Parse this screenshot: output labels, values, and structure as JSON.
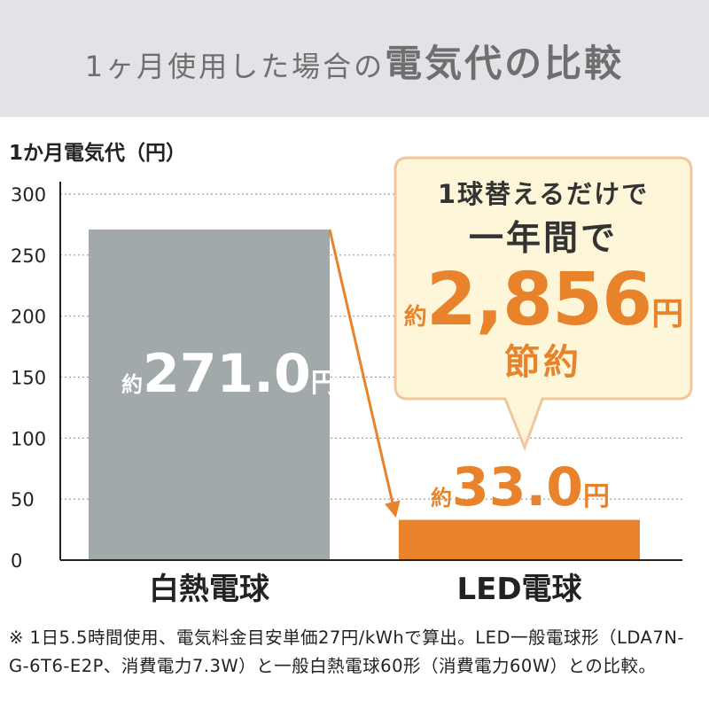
{
  "header": {
    "title_prefix": "1ヶ月使用した場合の",
    "title_main": "電気代の比較"
  },
  "colors": {
    "incandescent": "#a2a9aa",
    "led": "#e8832c",
    "bubble_fill": "#fdf6d9",
    "bubble_border": "#f0c79b"
  },
  "callout": {
    "line1": "1球替えるだけで",
    "line2": "一年間で",
    "prefix": "約",
    "amount": "2,856",
    "unit": "円",
    "line4": "節約"
  },
  "value_labels": [
    {
      "prefix": "約",
      "number": "271.0",
      "unit": "円"
    },
    {
      "prefix": "約",
      "number": "33.0",
      "unit": "円"
    }
  ],
  "chart_data": {
    "type": "bar",
    "title": "1ヶ月使用した場合の電気代の比較",
    "ylabel": "1か月電気代（円）",
    "xlabel": "",
    "categories": [
      "白熱電球",
      "LED電球"
    ],
    "values": [
      271.0,
      33.0
    ],
    "ylim": [
      0,
      300
    ],
    "yticks": [
      0,
      50,
      100,
      150,
      200,
      250,
      300
    ],
    "grid": true,
    "annotations": [
      "約271.0円",
      "約33.0円",
      "1球替えるだけで一年間で約2,856円節約"
    ]
  },
  "footnote": "※ 1日5.5時間使用、電気料金目安単価27円/kWhで算出。LED一般電球形（LDA7N-G-6T6-E2P、消費電力7.3W）と一般白熱電球60形（消費電力60W）との比較。"
}
